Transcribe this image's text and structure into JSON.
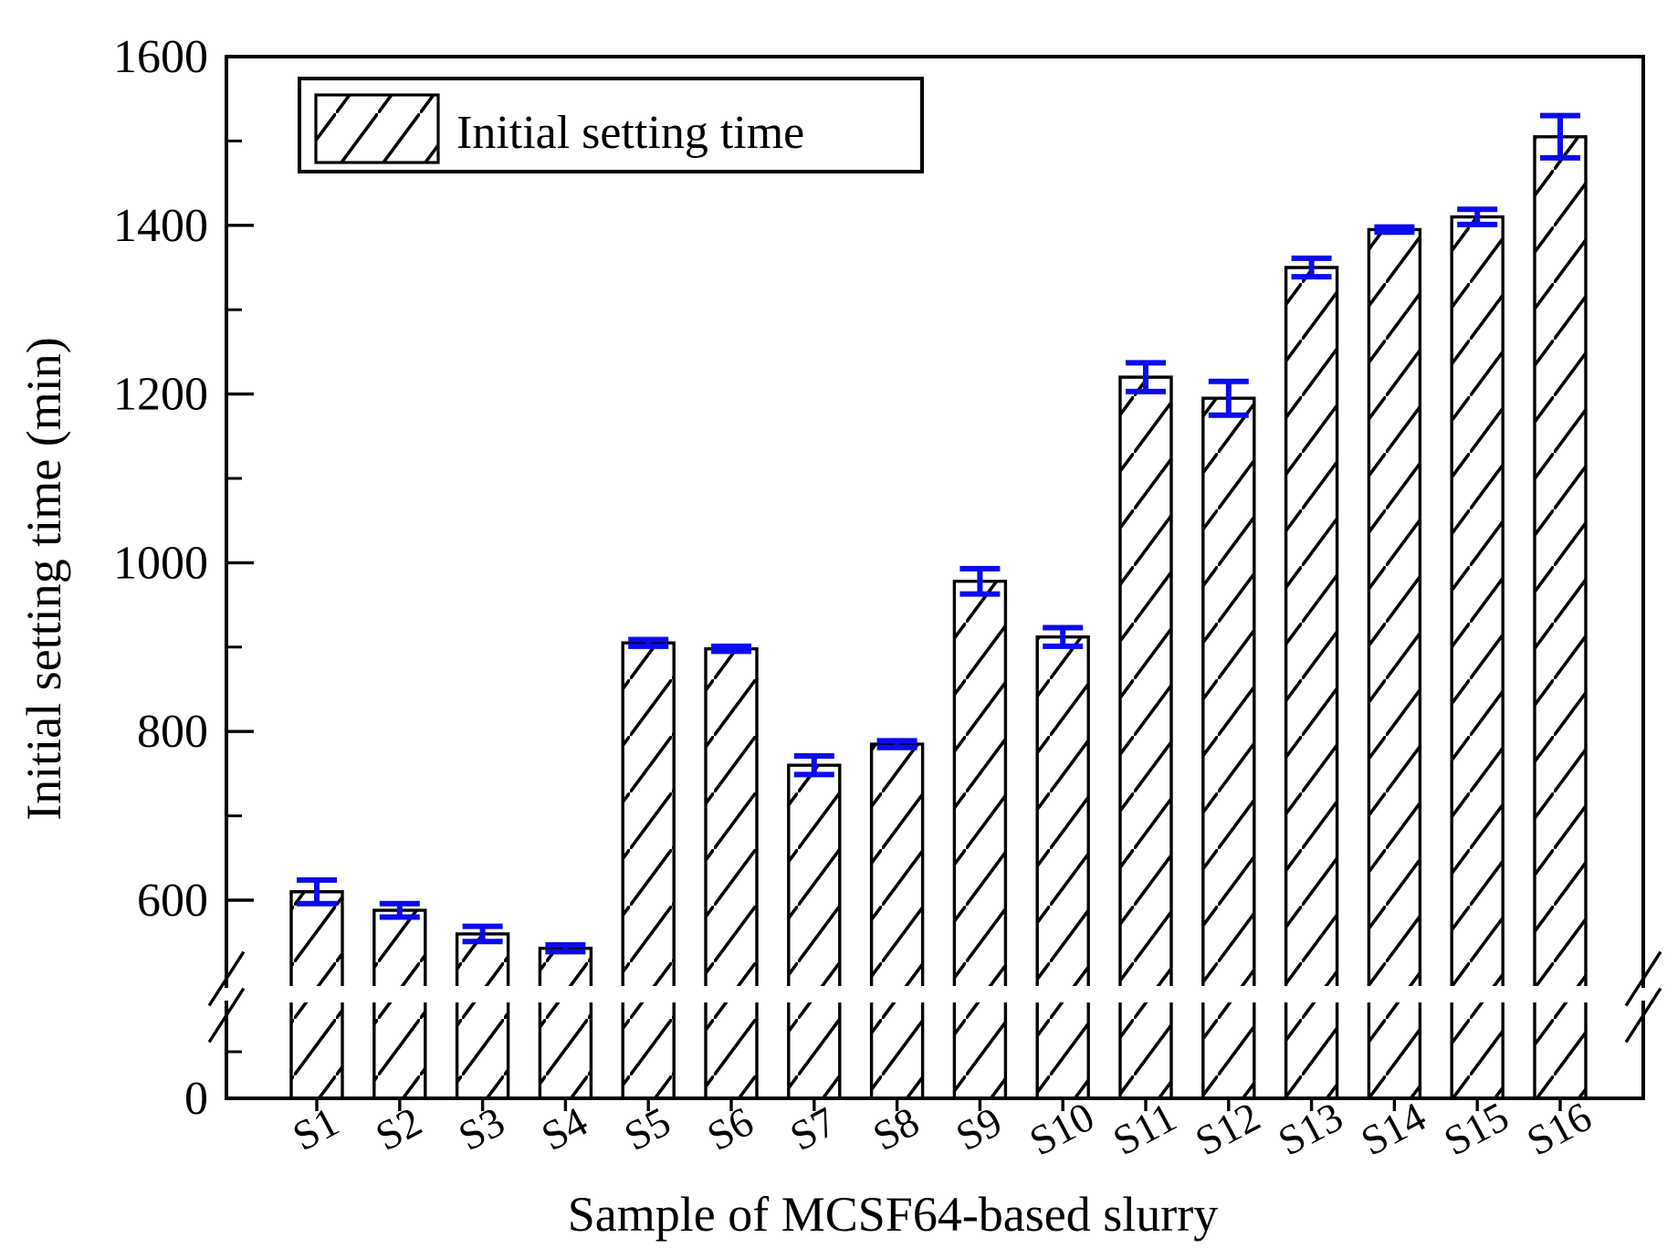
{
  "chart_data": {
    "type": "bar",
    "title": "",
    "xlabel": "Sample of MCSF64-based slurry",
    "ylabel": "Initial setting time (min)",
    "legend_label": "Initial setting time",
    "categories": [
      "S1",
      "S2",
      "S3",
      "S4",
      "S5",
      "S6",
      "S7",
      "S8",
      "S9",
      "S10",
      "S11",
      "S12",
      "S13",
      "S14",
      "S15",
      "S16"
    ],
    "values": [
      610,
      588,
      560,
      543,
      905,
      898,
      760,
      785,
      978,
      912,
      1220,
      1195,
      1350,
      1395,
      1410,
      1505
    ],
    "errors": [
      14,
      8,
      9,
      4,
      4,
      3,
      11,
      4,
      15,
      11,
      17,
      20,
      11,
      3,
      9,
      25
    ],
    "units": "min",
    "y_axis": {
      "major_ticks": [
        1600,
        1400,
        1200,
        1000,
        800,
        600
      ],
      "minor_ticks": [
        1500,
        1300,
        1100,
        900,
        700
      ],
      "zero_label": "0",
      "broken_axis": true,
      "break_hidden_range": [
        0,
        500
      ],
      "ylim": [
        0,
        1600
      ],
      "grid": false
    },
    "legend_position": "top-left-inside",
    "bar_style": {
      "fill": "#ffffff",
      "hatch": "diagonal-forward",
      "outline_color": "#000000",
      "error_bar_color": "#0b0bee"
    }
  }
}
